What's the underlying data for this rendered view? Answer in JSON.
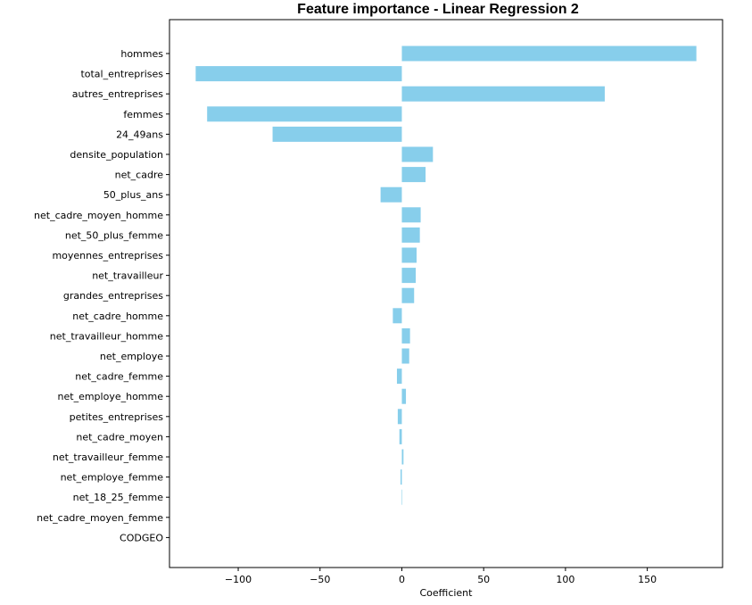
{
  "chart_data": {
    "type": "bar",
    "orientation": "horizontal",
    "title": "Feature importance - Linear Regression 2",
    "xlabel": "Coefficient",
    "ylabel": "",
    "xlim": [
      -142,
      196
    ],
    "xticks": [
      -100,
      -50,
      0,
      50,
      100,
      150
    ],
    "xtick_labels": [
      "−100",
      "−50",
      "0",
      "50",
      "100",
      "150"
    ],
    "grid": false,
    "bar_color": "#87ceeb",
    "categories": [
      "hommes",
      "total_entreprises",
      "autres_entreprises",
      "femmes",
      "24_49ans",
      "densite_population",
      "net_cadre",
      "50_plus_ans",
      "net_cadre_moyen_homme",
      "net_50_plus_femme",
      "moyennes_entreprises",
      "net_travailleur",
      "grandes_entreprises",
      "net_cadre_homme",
      "net_travailleur_homme",
      "net_employe",
      "net_cadre_femme",
      "net_employe_homme",
      "petites_entreprises",
      "net_cadre_moyen",
      "net_travailleur_femme",
      "net_employe_femme",
      "net_18_25_femme",
      "net_cadre_moyen_femme",
      "CODGEO"
    ],
    "values": [
      180,
      -126,
      124,
      -119,
      -79,
      19,
      14.5,
      -13,
      11.5,
      11,
      9,
      8.5,
      7.5,
      -5.5,
      5,
      4.5,
      -3,
      2.5,
      -2.5,
      -1.5,
      1,
      -0.8,
      0.3,
      0,
      0
    ]
  }
}
